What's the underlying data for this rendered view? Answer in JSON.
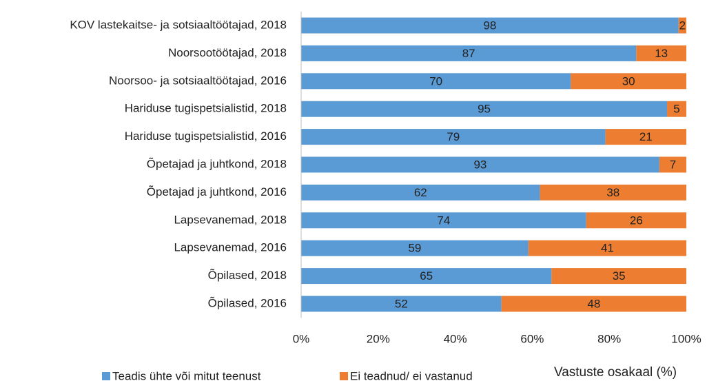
{
  "chart_data": {
    "type": "stacked-bar-horizontal",
    "categories": [
      "KOV lastekaitse- ja sotsiaaltöötajad, 2018",
      "Noorsootöötajad, 2018",
      "Noorsoo- ja sotsiaaltöötajad, 2016",
      "Hariduse tugispetsialistid, 2018",
      "Hariduse tugispetsialistid, 2016",
      "Õpetajad ja juhtkond, 2018",
      "Õpetajad ja juhtkond, 2016",
      "Lapsevanemad, 2018",
      "Lapsevanemad, 2016",
      "Õpilased, 2018",
      "Õpilased, 2016"
    ],
    "series": [
      {
        "name": "Teadis ühte või mitut teenust",
        "color": "#5b9bd5",
        "values": [
          98,
          87,
          70,
          95,
          79,
          93,
          62,
          74,
          59,
          65,
          52
        ]
      },
      {
        "name": "Ei teadnud/ ei vastanud",
        "color": "#ed7d31",
        "values": [
          2,
          13,
          30,
          5,
          21,
          7,
          38,
          26,
          41,
          35,
          48
        ]
      }
    ],
    "xlabel": "Vastuste osakaal (%)",
    "xlim": [
      0,
      100
    ],
    "xticks": [
      {
        "value": 0,
        "label": "0%"
      },
      {
        "value": 20,
        "label": "20%"
      },
      {
        "value": 40,
        "label": "40%"
      },
      {
        "value": 60,
        "label": "60%"
      },
      {
        "value": 80,
        "label": "80%"
      },
      {
        "value": 100,
        "label": "100%"
      }
    ],
    "legend": "bottom"
  }
}
